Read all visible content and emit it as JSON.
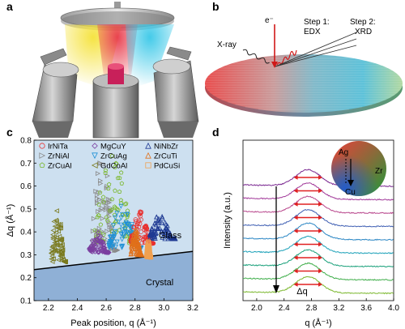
{
  "panels": {
    "a": {
      "label": "a"
    },
    "b": {
      "label": "b",
      "xray_label": "X-ray",
      "electron_label": "e⁻",
      "step1_line1": "Step 1:",
      "step1_line2": "EDX",
      "step2_line1": "Step 2:",
      "step2_line2": "XRD"
    },
    "c": {
      "label": "c",
      "glass_label": "Glass",
      "crystal_label": "Crystal"
    },
    "d": {
      "label": "d",
      "delta_q_label": "Δq",
      "wheel_labels": {
        "ag": "Ag",
        "zr": "Zr",
        "cu": "Cu"
      }
    }
  },
  "chart_data": [
    {
      "panel": "c",
      "type": "scatter",
      "xlabel": "Peak position, q (Å⁻¹)",
      "ylabel": "Δq (Å⁻¹)",
      "xlim": [
        2.1,
        3.2
      ],
      "ylim": [
        0.1,
        0.8
      ],
      "xticks": [
        "2.2",
        "2.4",
        "2.6",
        "2.8",
        "3.0",
        "3.2"
      ],
      "yticks": [
        "0.1",
        "0.2",
        "0.3",
        "0.4",
        "0.5",
        "0.6",
        "0.7",
        "0.8"
      ],
      "boundary_line": {
        "x": [
          2.1,
          3.2
        ],
        "y": [
          0.235,
          0.315
        ]
      },
      "legend": [
        {
          "name": "IrNiTa",
          "color": "#e8302f",
          "marker": "circle"
        },
        {
          "name": "MgCuY",
          "color": "#7b3fa0",
          "marker": "diamond"
        },
        {
          "name": "NiNbZr",
          "color": "#1f3a93",
          "marker": "triangle-up"
        },
        {
          "name": "ZrNiAl",
          "color": "#8a8a8a",
          "marker": "triangle-right"
        },
        {
          "name": "ZrCuAg",
          "color": "#1e90d6",
          "marker": "triangle-down"
        },
        {
          "name": "ZrCuTi",
          "color": "#e0701a",
          "marker": "triangle-up"
        },
        {
          "name": "ZrCuAl",
          "color": "#7cb82f",
          "marker": "pentagon"
        },
        {
          "name": "GdCoAl",
          "color": "#7a7a1e",
          "marker": "triangle-left"
        },
        {
          "name": "PdCuSi",
          "color": "#f0a050",
          "marker": "square"
        }
      ],
      "series": [
        {
          "name": "GdCoAl",
          "x_range": [
            2.22,
            2.32
          ],
          "dq_range": [
            0.27,
            0.52
          ]
        },
        {
          "name": "ZrNiAl",
          "x_range": [
            2.5,
            2.68
          ],
          "dq_range": [
            0.32,
            0.76
          ]
        },
        {
          "name": "ZrCuAl",
          "x_range": [
            2.52,
            2.82
          ],
          "dq_range": [
            0.35,
            0.77
          ]
        },
        {
          "name": "MgCuY",
          "x_range": [
            2.48,
            2.62
          ],
          "dq_range": [
            0.31,
            0.4
          ]
        },
        {
          "name": "ZrCuAg",
          "x_range": [
            2.62,
            2.85
          ],
          "dq_range": [
            0.33,
            0.52
          ]
        },
        {
          "name": "IrNiTa",
          "x_range": [
            2.77,
            2.93
          ],
          "dq_range": [
            0.35,
            0.49
          ]
        },
        {
          "name": "ZrCuTi",
          "x_range": [
            2.77,
            2.85
          ],
          "dq_range": [
            0.3,
            0.42
          ]
        },
        {
          "name": "NiNbZr",
          "x_range": [
            2.9,
            3.08
          ],
          "dq_range": [
            0.37,
            0.48
          ]
        },
        {
          "name": "PdCuSi",
          "x_range": [
            2.88,
            2.91
          ],
          "dq_range": [
            0.29,
            0.36
          ]
        }
      ]
    },
    {
      "panel": "d",
      "type": "line",
      "xlabel": "q (Å⁻¹)",
      "ylabel": "Intensity (a.u.)",
      "xlim": [
        1.8,
        4.0
      ],
      "xticks": [
        "2.0",
        "2.4",
        "2.8",
        "3.2",
        "3.6",
        "4.0"
      ],
      "peak_center_q": 2.75,
      "fwhm_q": 0.42,
      "trace_colors": [
        "#7b2a92",
        "#a23a9a",
        "#b8468c",
        "#3f5fb3",
        "#2a86c4",
        "#1aa0b8",
        "#19a07a",
        "#3fae4a",
        "#7cb82f"
      ]
    }
  ]
}
